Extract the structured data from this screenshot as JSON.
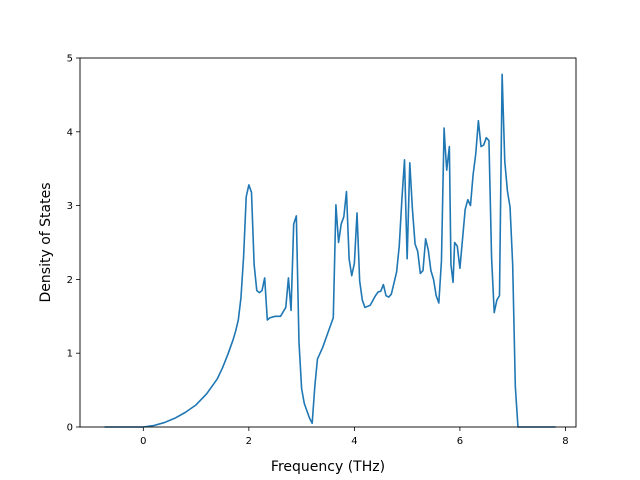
{
  "chart_data": {
    "type": "line",
    "title": "",
    "xlabel": "Frequency (THz)",
    "ylabel": "Density of States",
    "xlim": [
      -1.2,
      8.2
    ],
    "ylim": [
      0,
      5
    ],
    "xticks": [
      0,
      2,
      4,
      6,
      8
    ],
    "yticks": [
      0,
      1,
      2,
      3,
      4,
      5
    ],
    "grid": false,
    "line_color": "#1f77b4",
    "series": [
      {
        "x": [
          -0.72,
          -0.4,
          0.0,
          0.2,
          0.4,
          0.6,
          0.8,
          1.0,
          1.2,
          1.4,
          1.5,
          1.6,
          1.7,
          1.75,
          1.8,
          1.85,
          1.9,
          1.95,
          2.0,
          2.05,
          2.1,
          2.15,
          2.2,
          2.25,
          2.3,
          2.35,
          2.4,
          2.5,
          2.6,
          2.7,
          2.75,
          2.8,
          2.85,
          2.9,
          2.95,
          3.0,
          3.05,
          3.1,
          3.15,
          3.2,
          3.25,
          3.3,
          3.35,
          3.4,
          3.5,
          3.6,
          3.65,
          3.7,
          3.75,
          3.8,
          3.85,
          3.9,
          3.95,
          4.0,
          4.05,
          4.1,
          4.15,
          4.2,
          4.3,
          4.4,
          4.45,
          4.5,
          4.55,
          4.6,
          4.65,
          4.7,
          4.8,
          4.85,
          4.9,
          4.95,
          5.0,
          5.05,
          5.1,
          5.15,
          5.2,
          5.25,
          5.3,
          5.35,
          5.4,
          5.45,
          5.5,
          5.55,
          5.6,
          5.65,
          5.7,
          5.72,
          5.75,
          5.8,
          5.83,
          5.87,
          5.9,
          5.95,
          6.0,
          6.05,
          6.1,
          6.15,
          6.2,
          6.25,
          6.3,
          6.35,
          6.4,
          6.45,
          6.5,
          6.55,
          6.6,
          6.65,
          6.7,
          6.75,
          6.8,
          6.85,
          6.9,
          6.95,
          7.0,
          7.05,
          7.1,
          7.3,
          7.8
        ],
        "y": [
          0,
          0,
          0,
          0.02,
          0.06,
          0.12,
          0.2,
          0.3,
          0.45,
          0.65,
          0.8,
          0.98,
          1.18,
          1.3,
          1.45,
          1.75,
          2.3,
          3.12,
          3.28,
          3.18,
          2.2,
          1.85,
          1.82,
          1.85,
          2.02,
          1.45,
          1.48,
          1.5,
          1.5,
          1.62,
          2.02,
          1.58,
          2.75,
          2.86,
          1.15,
          0.52,
          0.32,
          0.22,
          0.12,
          0.05,
          0.55,
          0.92,
          1.0,
          1.08,
          1.28,
          1.48,
          3.01,
          2.5,
          2.75,
          2.85,
          3.19,
          2.28,
          2.05,
          2.22,
          2.9,
          1.98,
          1.72,
          1.62,
          1.65,
          1.78,
          1.83,
          1.84,
          1.93,
          1.78,
          1.76,
          1.8,
          2.1,
          2.45,
          3.08,
          3.62,
          2.28,
          3.58,
          2.95,
          2.48,
          2.38,
          2.08,
          2.12,
          2.55,
          2.4,
          2.12,
          2.0,
          1.78,
          1.68,
          2.25,
          4.05,
          3.8,
          3.48,
          3.8,
          2.2,
          1.96,
          2.5,
          2.45,
          2.15,
          2.55,
          2.95,
          3.08,
          3.0,
          3.42,
          3.7,
          4.15,
          3.8,
          3.82,
          3.92,
          3.88,
          2.3,
          1.55,
          1.72,
          1.78,
          4.78,
          3.6,
          3.2,
          2.98,
          2.2,
          0.55,
          0,
          0,
          0
        ]
      }
    ]
  }
}
